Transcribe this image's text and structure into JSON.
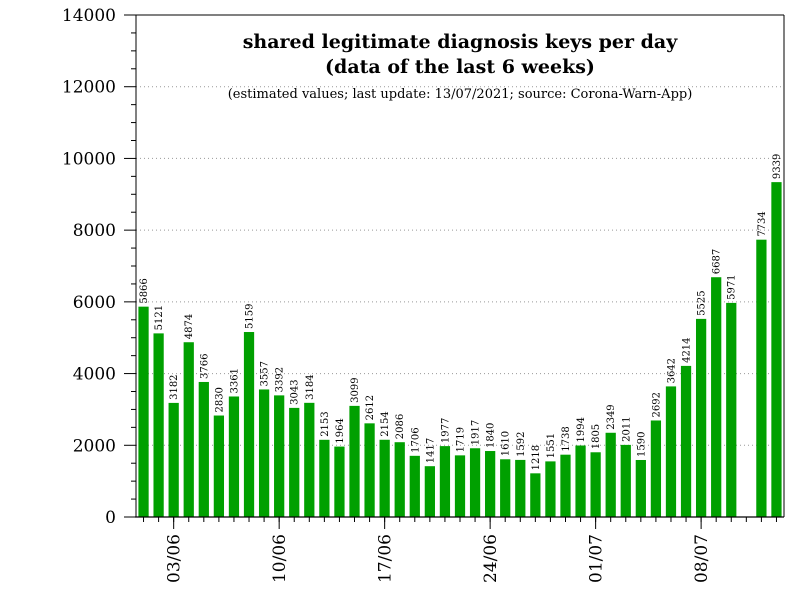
{
  "chart_data": {
    "type": "bar",
    "title_line1": "shared legitimate diagnosis keys per day",
    "title_line2": "(data of the last 6 weeks)",
    "subtitle": "(estimated values; last update: 13/07/2021; source: Corona-Warn-App)",
    "xlabel": "",
    "ylabel": "",
    "ylim": [
      0,
      14000
    ],
    "yticks": [
      0,
      2000,
      4000,
      6000,
      8000,
      10000,
      12000,
      14000
    ],
    "bar_color": "#00a000",
    "grid": "dotted horizontal",
    "x_dates": [
      "01/06",
      "02/06",
      "03/06",
      "04/06",
      "05/06",
      "06/06",
      "07/06",
      "08/06",
      "09/06",
      "10/06",
      "11/06",
      "12/06",
      "13/06",
      "14/06",
      "15/06",
      "16/06",
      "17/06",
      "18/06",
      "19/06",
      "20/06",
      "21/06",
      "22/06",
      "23/06",
      "24/06",
      "25/06",
      "26/06",
      "27/06",
      "28/06",
      "29/06",
      "30/06",
      "01/07",
      "02/07",
      "03/07",
      "04/07",
      "05/07",
      "06/07",
      "07/07",
      "08/07",
      "09/07",
      "10/07",
      "11/07",
      "12/07",
      "13/07"
    ],
    "values": [
      5866,
      5121,
      3182,
      4874,
      3766,
      2830,
      3361,
      5159,
      3557,
      3392,
      3043,
      3184,
      2153,
      1964,
      3099,
      2612,
      2154,
      2086,
      1706,
      1417,
      1977,
      1719,
      1917,
      1840,
      1610,
      1592,
      1218,
      1551,
      1738,
      1994,
      1805,
      2349,
      2011,
      1590,
      2692,
      3642,
      4214,
      5525,
      6687,
      5971,
      null,
      7734,
      9339
    ],
    "value_labels": [
      "5866",
      "5121",
      "3182",
      "4874",
      "3766",
      "2830",
      "3361",
      "5159",
      "3557",
      "3392",
      "3043",
      "3184",
      "2153",
      "1964",
      "3099",
      "2612",
      "2154",
      "2086",
      "1706",
      "1417",
      "1977",
      "1719",
      "1917",
      "1840",
      "1610",
      "1592",
      "1218",
      "1551",
      "1738",
      "1994",
      "1805",
      "2349",
      "2011",
      "1590",
      "2692",
      "3642",
      "4214",
      "5525",
      "6687",
      "5971",
      "",
      "7734",
      "9339"
    ],
    "xtick_labels": [
      {
        "label": "03/06",
        "index": 2
      },
      {
        "label": "10/06",
        "index": 9
      },
      {
        "label": "17/06",
        "index": 16
      },
      {
        "label": "24/06",
        "index": 23
      },
      {
        "label": "01/07",
        "index": 30
      },
      {
        "label": "08/07",
        "index": 37
      }
    ]
  }
}
